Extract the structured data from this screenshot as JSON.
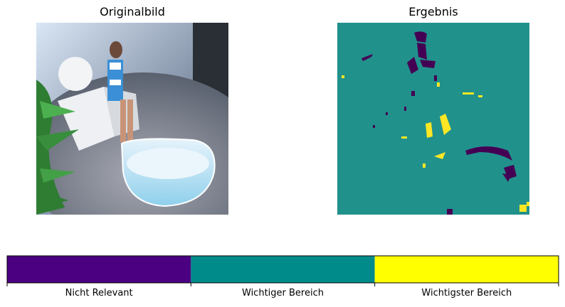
{
  "chart_data": [
    {
      "type": "image",
      "title": "Originalbild"
    },
    {
      "type": "heatmap",
      "title": "Ergebnis",
      "classes": [
        {
          "label": "Nicht Relevant",
          "color": "#440154"
        },
        {
          "label": "Wichtiger Bereich",
          "color": "#21918c"
        },
        {
          "label": "Wichtigster Bereich",
          "color": "#fde725"
        }
      ],
      "background_class": "Wichtiger Bereich"
    }
  ],
  "colorbar": {
    "labels": [
      "Nicht Relevant",
      "Wichtiger Bereich",
      "Wichtigster Bereich"
    ],
    "colors": [
      "#4b0082",
      "#008b8b",
      "#ffff00"
    ]
  }
}
